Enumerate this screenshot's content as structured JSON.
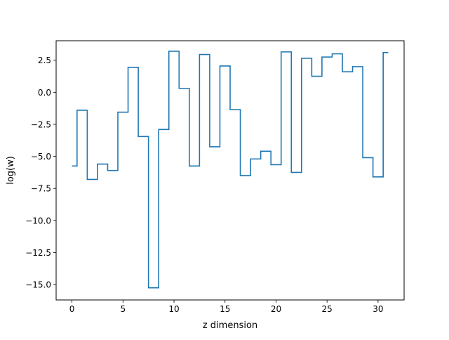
{
  "chart_data": {
    "type": "line",
    "drawstyle": "steps-mid",
    "xlabel": "z dimension",
    "ylabel": "log(w)",
    "xlim": [
      -1.55,
      32.55
    ],
    "ylim": [
      -16.2,
      4.02
    ],
    "grid": false,
    "xticks": [
      0,
      5,
      10,
      15,
      20,
      25,
      30
    ],
    "xtick_labels": [
      "0",
      "5",
      "10",
      "15",
      "20",
      "25",
      "30"
    ],
    "yticks": [
      2.5,
      0.0,
      -2.5,
      -5.0,
      -7.5,
      -10.0,
      -12.5,
      -15.0
    ],
    "ytick_labels": [
      "2.5",
      "0.0",
      "−2.5",
      "−5.0",
      "−7.5",
      "−10.0",
      "−12.5",
      "−15.0"
    ],
    "series": [
      {
        "color": "#1f77b4",
        "x": [
          0,
          1,
          2,
          3,
          4,
          5,
          6,
          7,
          8,
          9,
          10,
          11,
          12,
          13,
          14,
          15,
          16,
          17,
          18,
          19,
          20,
          21,
          22,
          23,
          24,
          25,
          26,
          27,
          28,
          29,
          30,
          31
        ],
        "y": [
          -5.75,
          -1.4,
          -6.8,
          -5.6,
          -6.1,
          -1.55,
          1.95,
          -3.45,
          -15.25,
          -2.9,
          3.2,
          0.3,
          -5.75,
          2.95,
          -4.25,
          2.05,
          -1.35,
          -6.5,
          -5.2,
          -4.6,
          -5.65,
          3.15,
          -6.25,
          2.65,
          1.25,
          2.75,
          3.0,
          1.6,
          2.0,
          -5.1,
          -6.6,
          3.1
        ]
      }
    ]
  }
}
